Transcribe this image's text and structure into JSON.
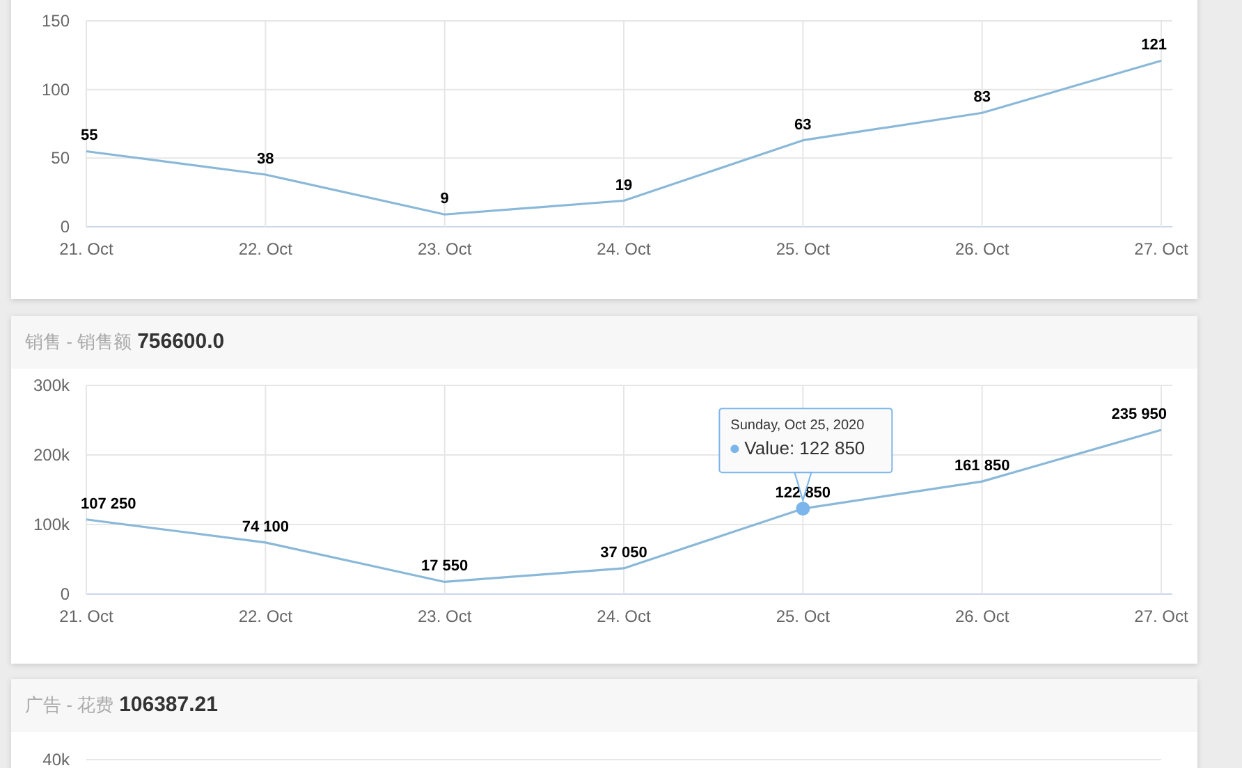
{
  "chart_data": [
    {
      "type": "line",
      "categories": [
        "21. Oct",
        "22. Oct",
        "23. Oct",
        "24. Oct",
        "25. Oct",
        "26. Oct",
        "27. Oct"
      ],
      "series": [
        {
          "color": "#8ab8d8",
          "values": [
            55,
            38,
            9,
            19,
            63,
            83,
            121
          ]
        }
      ],
      "ylim": [
        0,
        150
      ],
      "yticks": [
        0,
        50,
        100,
        150
      ],
      "grid": true,
      "data_labels": true,
      "marker": "none"
    },
    {
      "type": "line",
      "title": "销售 - 销售额",
      "subtitle": "756600.0",
      "categories": [
        "21. Oct",
        "22. Oct",
        "23. Oct",
        "24. Oct",
        "25. Oct",
        "26. Oct",
        "27. Oct"
      ],
      "series": [
        {
          "color": "#8ab8d8",
          "values": [
            107250,
            74100,
            17550,
            37050,
            122850,
            161850,
            235950
          ],
          "value_labels": [
            "107 250",
            "74 100",
            "17 550",
            "37 050",
            "122 850",
            "161 850",
            "235 950"
          ]
        }
      ],
      "ylim": [
        0,
        300000
      ],
      "yticks": [
        0,
        {
          "value": 100000,
          "label": "100k"
        },
        {
          "value": 200000,
          "label": "200k"
        },
        {
          "value": 300000,
          "label": "300k"
        }
      ],
      "grid": true,
      "marker": "none",
      "annotations": [
        {
          "text": "Sunday, Oct 25, 2020\nValue: 122 850",
          "x": "25. Oct",
          "y": 122850
        }
      ]
    },
    {
      "type": "other",
      "title": "广告 - 花费",
      "subtitle": "106387.21",
      "annotations": [
        "40k"
      ]
    }
  ]
}
